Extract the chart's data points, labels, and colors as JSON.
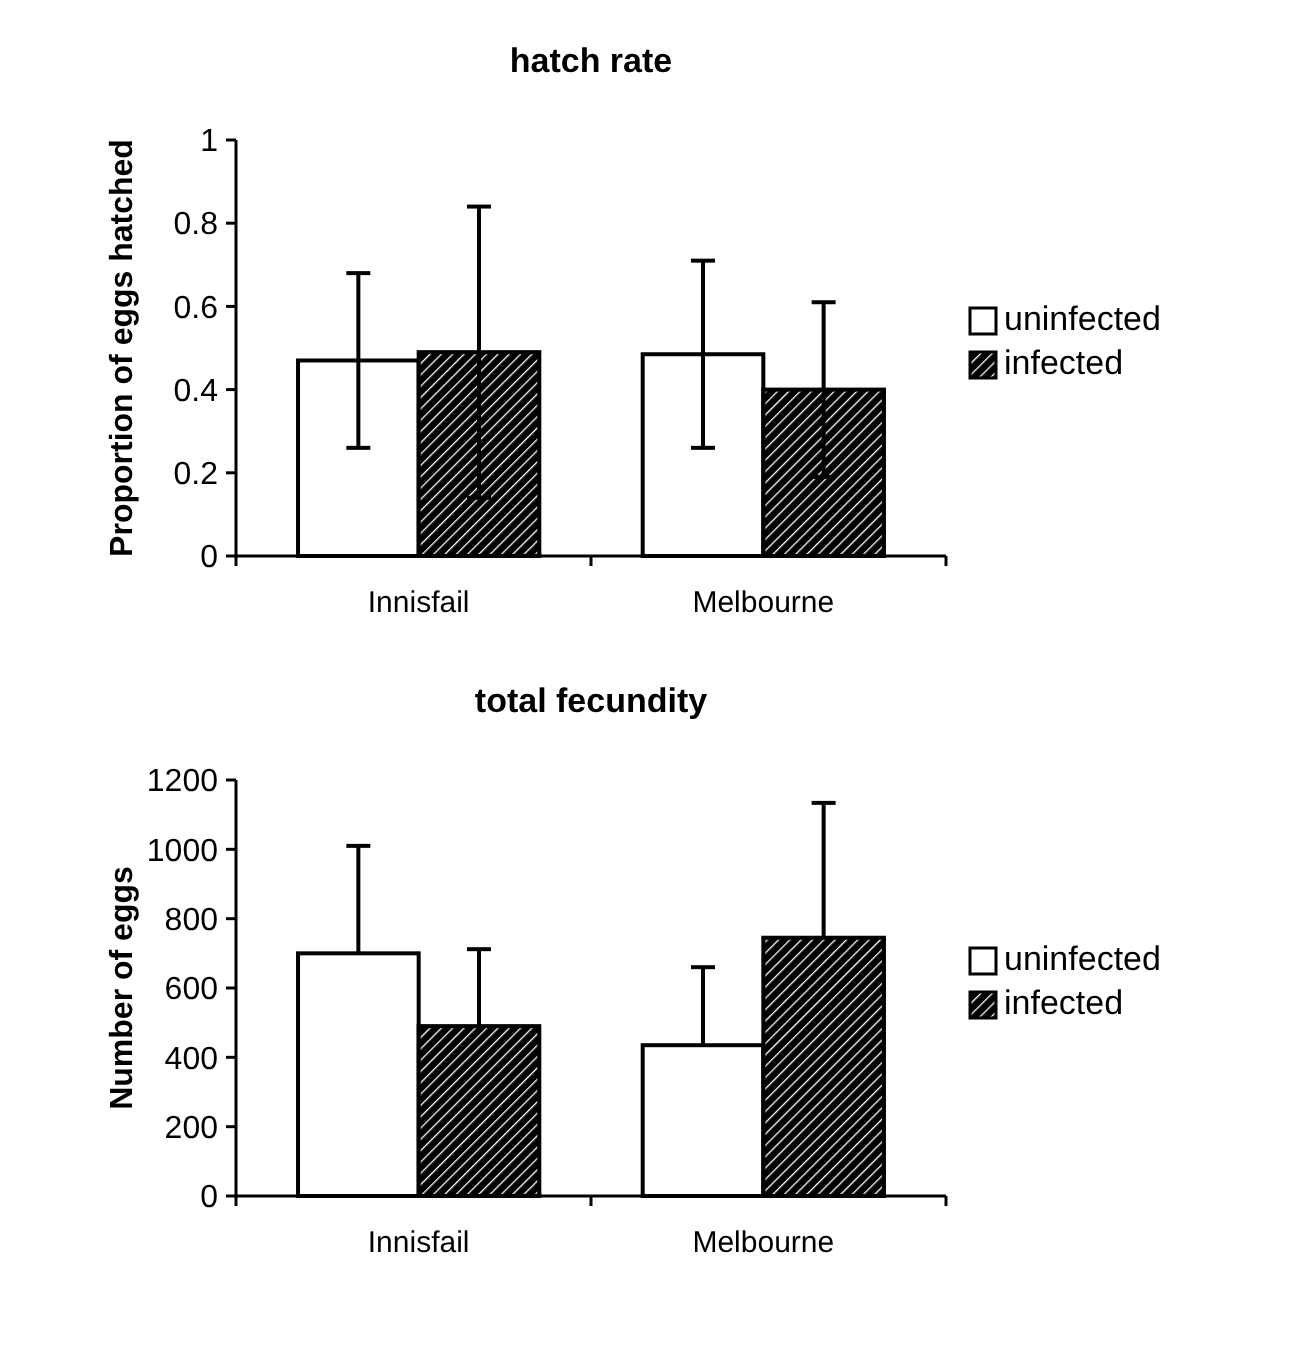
{
  "chart_data": [
    {
      "type": "bar",
      "title": "hatch rate",
      "ylabel": "Proportion of eggs hatched",
      "categories": [
        "Innisfail",
        "Melbourne"
      ],
      "ylim": [
        0,
        1
      ],
      "yticks": [
        0,
        0.2,
        0.4,
        0.6,
        0.8,
        1
      ],
      "legend": "right",
      "series": [
        {
          "name": "uninfected",
          "color": "#ffffff",
          "values": [
            0.47,
            0.485
          ],
          "errors": [
            0.21,
            0.225
          ]
        },
        {
          "name": "infected",
          "color": "#000000",
          "values": [
            0.49,
            0.4
          ],
          "errors": [
            0.35,
            0.21
          ]
        }
      ]
    },
    {
      "type": "bar",
      "title": "total fecundity",
      "ylabel": "Number of eggs",
      "categories": [
        "Innisfail",
        "Melbourne"
      ],
      "ylim": [
        0,
        1200
      ],
      "yticks": [
        0,
        200,
        400,
        600,
        800,
        1000,
        1200
      ],
      "legend": "right",
      "series": [
        {
          "name": "uninfected",
          "color": "#ffffff",
          "values": [
            700,
            435
          ],
          "errors": [
            [
              700,
              1010
            ],
            [
              435,
              660
            ]
          ]
        },
        {
          "name": "infected",
          "color": "#000000",
          "values": [
            490,
            745
          ],
          "errors": [
            [
              490,
              712
            ],
            [
              745,
              1134
            ]
          ]
        }
      ]
    }
  ]
}
